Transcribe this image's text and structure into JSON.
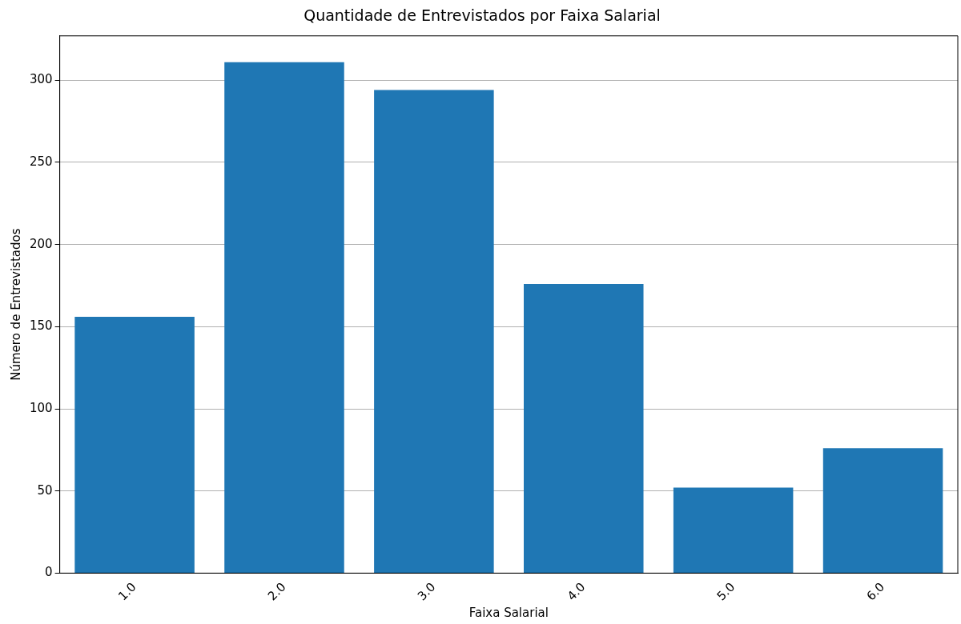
{
  "chart_data": {
    "type": "bar",
    "title": "Quantidade de Entrevistados por Faixa Salarial",
    "xlabel": "Faixa Salarial",
    "ylabel": "Número de Entrevistados",
    "categories": [
      "1.0",
      "2.0",
      "3.0",
      "4.0",
      "5.0",
      "6.0"
    ],
    "values": [
      156,
      311,
      294,
      176,
      52,
      76
    ],
    "color": "#1f77b4",
    "ylim": [
      0,
      327
    ],
    "yticks": [
      0,
      50,
      100,
      150,
      200,
      250,
      300
    ],
    "grid": "y"
  }
}
